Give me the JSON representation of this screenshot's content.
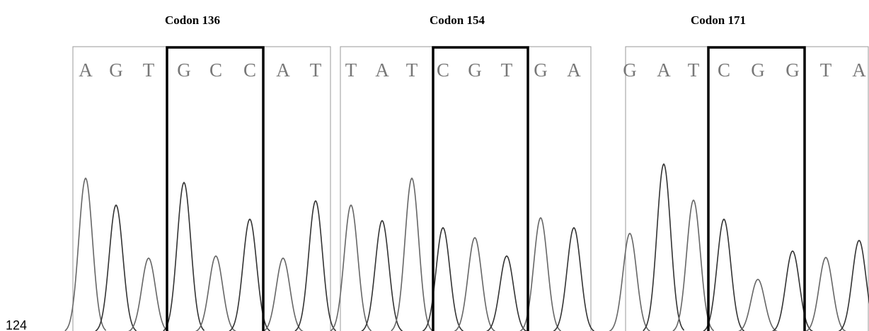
{
  "line_number": "124",
  "panels": [
    {
      "title": "Codon 136",
      "bases": [
        "A",
        "G",
        "T",
        "G",
        "C",
        "C",
        "A",
        "T"
      ]
    },
    {
      "title": "Codon 154",
      "bases": [
        "T",
        "A",
        "T",
        "C",
        "G",
        "T",
        "G",
        "A"
      ]
    },
    {
      "title": "Codon 171",
      "bases": [
        "G",
        "A",
        "T",
        "C",
        "G",
        "G",
        "T",
        "A"
      ]
    }
  ]
}
